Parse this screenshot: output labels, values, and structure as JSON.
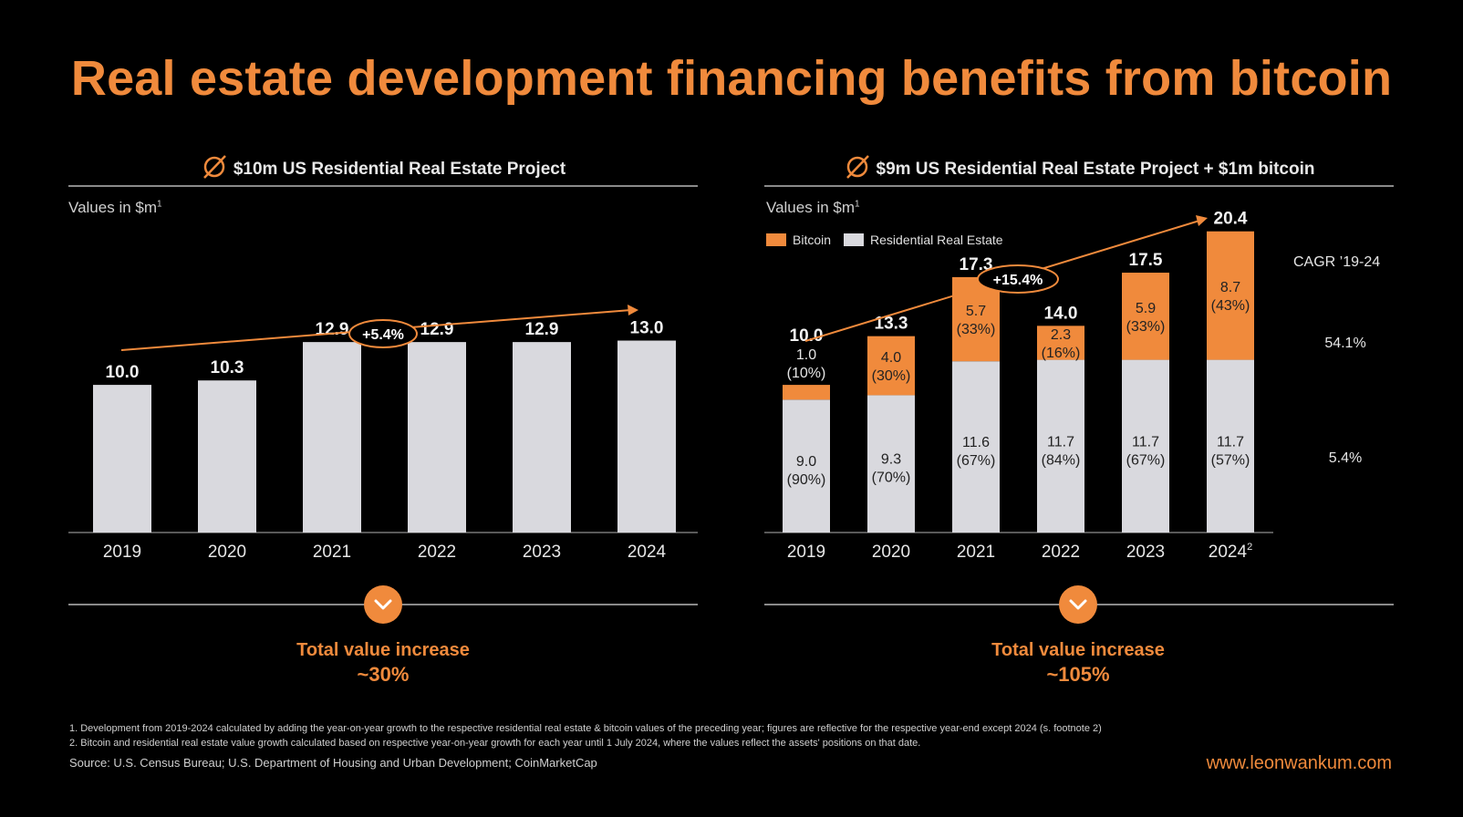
{
  "title": "Real estate development financing benefits from bitcoin",
  "left_panel": {
    "heading": "$10m US Residential Real Estate Project",
    "values_label": "Values in $m",
    "values_sup": "1",
    "growth_label": "+5.4%",
    "total_line1": "Total value increase",
    "total_line2": "~30%"
  },
  "right_panel": {
    "heading": "$9m US Residential Real Estate Project + $1m bitcoin",
    "values_label": "Values in $m",
    "values_sup": "1",
    "legend_bitcoin": "Bitcoin",
    "legend_real_estate": "Residential Real Estate",
    "growth_label": "+15.4%",
    "cagr_title": "CAGR ’19-24",
    "cagr_bitcoin": "54.1%",
    "cagr_real_estate": "5.4%",
    "total_line1": "Total value increase",
    "total_line2": "~105%"
  },
  "colors": {
    "accent": "#f08a3c",
    "bar": "#d9d9de",
    "background": "#000000"
  },
  "footnotes": [
    "1. Development from 2019-2024 calculated by adding the year-on-year growth to the respective residential real estate & bitcoin values of the preceding year; figures are reflective for the respective year-end except 2024 (s. footnote 2)",
    "2. Bitcoin and residential real estate value growth calculated based on respective year-on-year growth for each year until 1 July 2024, where the values reflect the assets' positions on that date."
  ],
  "source": "Source: U.S. Census Bureau; U.S. Department of Housing and Urban Development; CoinMarketCap",
  "website": "www.leonwankum.com",
  "chart_data": [
    {
      "type": "bar",
      "title": "$10m US Residential Real Estate Project",
      "ylabel": "Values in $m",
      "categories": [
        "2019",
        "2020",
        "2021",
        "2022",
        "2023",
        "2024"
      ],
      "values": [
        10.0,
        10.3,
        12.9,
        12.9,
        12.9,
        13.0
      ],
      "value_labels": [
        "10.0",
        "10.3",
        "12.9",
        "12.9",
        "12.9",
        "13.0"
      ],
      "ylim": [
        0,
        21
      ],
      "annotation": "+5.4%"
    },
    {
      "type": "bar",
      "stacked": true,
      "title": "$9m US Residential Real Estate Project + $1m bitcoin",
      "ylabel": "Values in $m",
      "categories": [
        "2019",
        "2020",
        "2021",
        "2022",
        "2023",
        "2024"
      ],
      "category_sup": [
        "",
        "",
        "",
        "",
        "",
        "2"
      ],
      "totals": [
        "10.0",
        "13.3",
        "17.3",
        "14.0",
        "17.5",
        "20.4"
      ],
      "series": [
        {
          "name": "Residential Real Estate",
          "values": [
            9.0,
            9.3,
            11.6,
            11.7,
            11.7,
            11.7
          ],
          "labels": [
            "9.0",
            "9.3",
            "11.6",
            "11.7",
            "11.7",
            "11.7"
          ],
          "shares": [
            "(90%)",
            "(70%)",
            "(67%)",
            "(84%)",
            "(67%)",
            "(57%)"
          ]
        },
        {
          "name": "Bitcoin",
          "values": [
            1.0,
            4.0,
            5.7,
            2.3,
            5.9,
            8.7
          ],
          "labels": [
            "1.0",
            "4.0",
            "5.7",
            "2.3",
            "5.9",
            "8.7"
          ],
          "shares": [
            "(10%)",
            "(30%)",
            "(33%)",
            "(16%)",
            "(33%)",
            "(43%)"
          ]
        }
      ],
      "ylim": [
        0,
        21
      ],
      "annotation": "+15.4%",
      "cagr": {
        "Bitcoin": "54.1%",
        "Residential Real Estate": "5.4%"
      }
    }
  ]
}
